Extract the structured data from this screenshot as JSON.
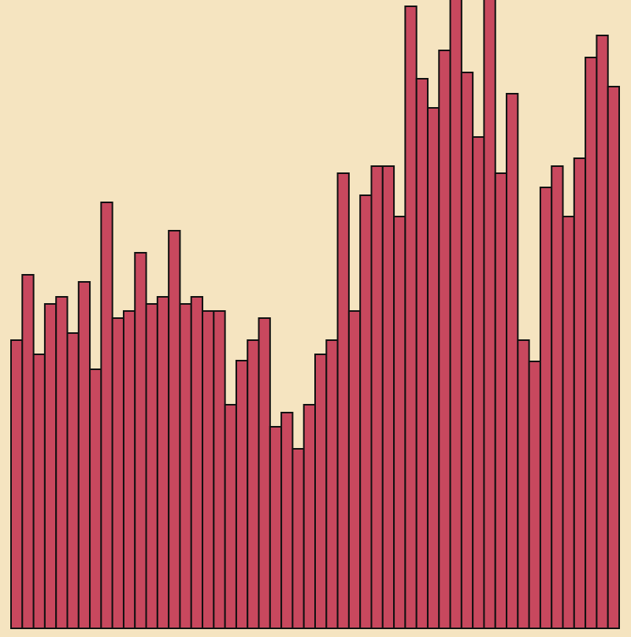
{
  "chart_data": {
    "type": "bar",
    "title": "",
    "xlabel": "",
    "ylabel": "",
    "ylim": [
      0,
      800
    ],
    "grid": false,
    "legend": "none",
    "colors": {
      "background": "#f5e4c0",
      "bar": "#c8485e",
      "edge": "#111111"
    },
    "values": [
      366,
      449,
      348,
      412,
      421,
      375,
      440,
      329,
      541,
      394,
      403,
      477,
      412,
      421,
      505,
      412,
      421,
      403,
      403,
      284,
      340,
      366,
      394,
      256,
      274,
      228,
      284,
      348,
      366,
      578,
      403,
      550,
      587,
      587,
      523,
      790,
      698,
      661,
      734,
      800,
      706,
      624,
      800,
      578,
      679,
      366,
      339,
      560,
      587,
      523,
      597,
      725,
      753,
      688
    ]
  }
}
